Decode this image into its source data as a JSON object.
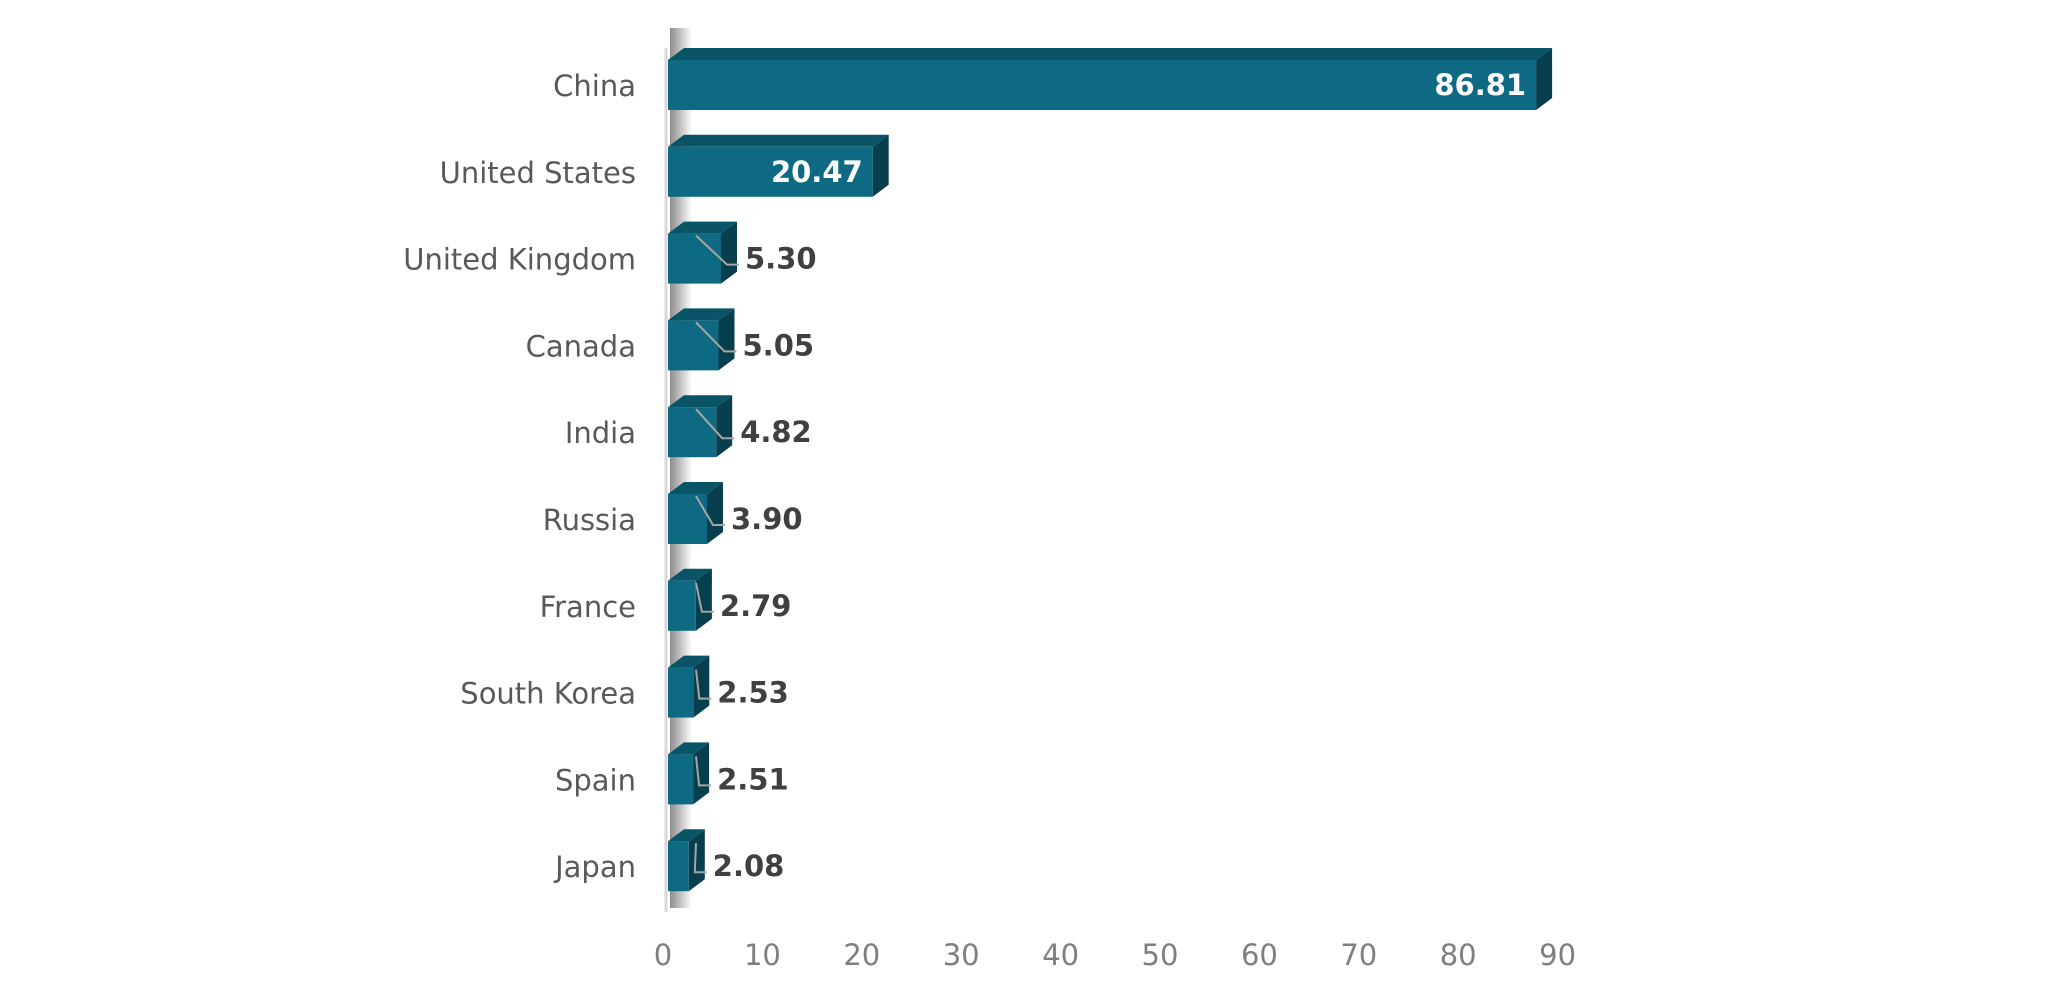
{
  "chart_data": {
    "type": "bar",
    "orientation": "horizontal",
    "categories": [
      "China",
      "United States",
      "United Kingdom",
      "Canada",
      "India",
      "Russia",
      "France",
      "South Korea",
      "Spain",
      "Japan"
    ],
    "values": [
      86.81,
      20.47,
      5.3,
      5.05,
      4.82,
      3.9,
      2.79,
      2.53,
      2.51,
      2.08
    ],
    "value_labels": [
      "86.81",
      "20.47",
      "5.30",
      "5.05",
      "4.82",
      "3.90",
      "2.79",
      "2.53",
      "2.51",
      "2.08"
    ],
    "x_ticks": [
      "0",
      "10",
      "20",
      "30",
      "40",
      "50",
      "60",
      "70",
      "80",
      "90"
    ],
    "xlim": [
      0,
      90
    ],
    "grid": false,
    "legend": "none",
    "style": "3d",
    "colors": {
      "bar_front": "#0e6a82",
      "bar_top": "#0a5468",
      "bar_side": "#073f4f",
      "value_inside": "#ffffff",
      "value_outside": "#404040",
      "axis": "#d9d9d9"
    }
  }
}
